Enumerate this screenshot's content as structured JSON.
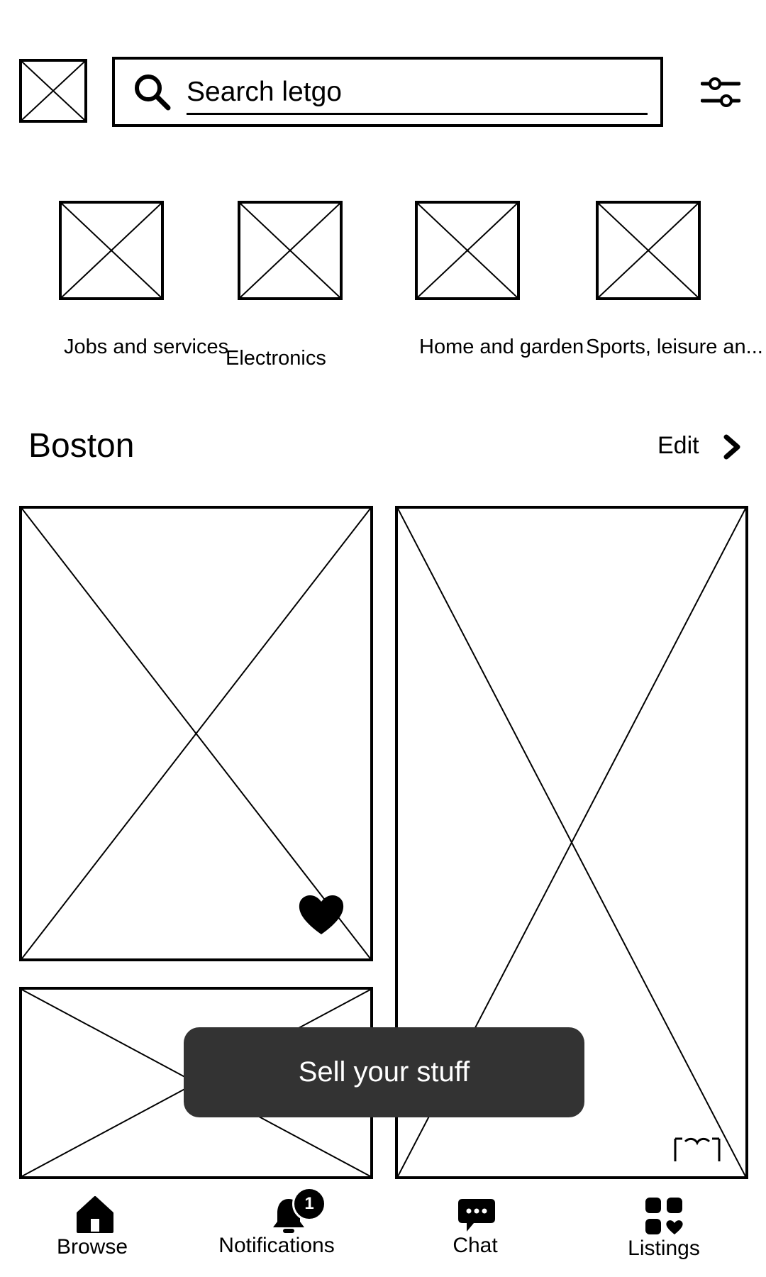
{
  "header": {
    "logo_icon": "image-placeholder-icon",
    "search": {
      "placeholder": "Search letgo",
      "icon": "search-icon"
    },
    "filter_icon": "sliders-icon"
  },
  "categories": [
    {
      "label": "Jobs and services",
      "icon": "image-placeholder-icon"
    },
    {
      "label": "Electronics",
      "icon": "image-placeholder-icon"
    },
    {
      "label": "Home and garden",
      "icon": "image-placeholder-icon"
    },
    {
      "label": "Sports, leisure an...",
      "icon": "image-placeholder-icon"
    }
  ],
  "location": {
    "title": "Boston",
    "edit_label": "Edit",
    "edit_icon": "chevron-right-icon"
  },
  "listings": [
    {
      "icon": "image-placeholder-icon",
      "favorite_icon": "heart-icon"
    },
    {
      "icon": "image-placeholder-icon",
      "favorite_icon": "heart-icon"
    },
    {
      "icon": "image-placeholder-icon"
    }
  ],
  "sell_button": {
    "label": "Sell your stuff"
  },
  "bottom_nav": {
    "items": [
      {
        "label": "Browse",
        "icon": "home-icon"
      },
      {
        "label": "Notifications",
        "icon": "bell-icon",
        "badge": "1"
      },
      {
        "label": "Chat",
        "icon": "chat-bubble-icon"
      },
      {
        "label": "Listings",
        "icon": "grid-heart-icon"
      }
    ]
  },
  "colors": {
    "foreground": "#000000",
    "background": "#ffffff",
    "sell_button_bg": "#333333",
    "sell_button_text": "#ffffff"
  }
}
